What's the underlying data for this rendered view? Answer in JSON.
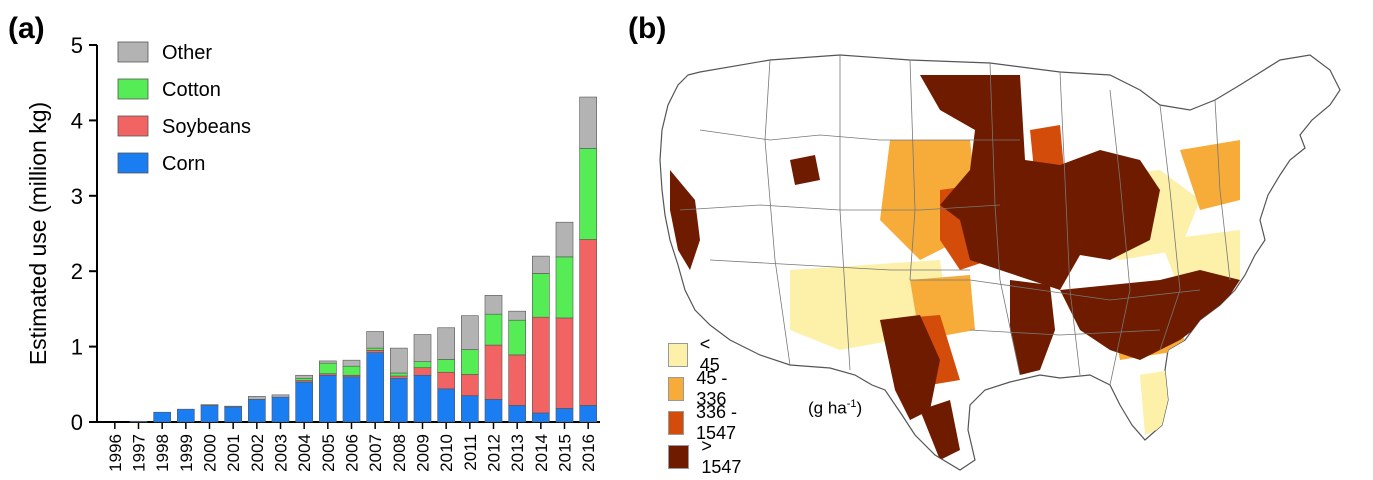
{
  "panels": {
    "a_label": "(a)",
    "b_label": "(b)"
  },
  "chart_data": {
    "type": "bar",
    "stacked": true,
    "title": "",
    "xlabel": "",
    "ylabel": "Estimated use (million kg)",
    "ylim": [
      0,
      5
    ],
    "yticks": [
      "0",
      "1",
      "2",
      "3",
      "4",
      "5"
    ],
    "categories": [
      "1996",
      "1997",
      "1998",
      "1999",
      "2000",
      "2001",
      "2002",
      "2003",
      "2004",
      "2005",
      "2006",
      "2007",
      "2008",
      "2009",
      "2010",
      "2011",
      "2012",
      "2013",
      "2014",
      "2015",
      "2016"
    ],
    "legend_position": "top-left",
    "series": [
      {
        "name": "Corn",
        "color": "#1a7ef2",
        "values": [
          0,
          0.01,
          0.13,
          0.17,
          0.22,
          0.2,
          0.3,
          0.33,
          0.53,
          0.62,
          0.6,
          0.92,
          0.58,
          0.62,
          0.44,
          0.35,
          0.3,
          0.22,
          0.12,
          0.18,
          0.22
        ]
      },
      {
        "name": "Soybeans",
        "color": "#f26464",
        "values": [
          0,
          0,
          0,
          0,
          0,
          0,
          0,
          0,
          0.02,
          0.02,
          0.02,
          0.03,
          0.03,
          0.1,
          0.22,
          0.28,
          0.72,
          0.67,
          1.27,
          1.2,
          2.2
        ]
      },
      {
        "name": "Cotton",
        "color": "#55ec55",
        "values": [
          0,
          0,
          0,
          0,
          0,
          0,
          0,
          0,
          0.03,
          0.14,
          0.12,
          0.03,
          0.04,
          0.08,
          0.17,
          0.33,
          0.41,
          0.46,
          0.58,
          0.81,
          1.21
        ]
      },
      {
        "name": "Other",
        "color": "#b3b3b3",
        "values": [
          0,
          0,
          0,
          0,
          0.01,
          0.01,
          0.04,
          0.03,
          0.04,
          0.03,
          0.08,
          0.22,
          0.33,
          0.36,
          0.42,
          0.45,
          0.25,
          0.12,
          0.23,
          0.46,
          0.68
        ]
      }
    ]
  },
  "map": {
    "legend": [
      {
        "label": "< 45",
        "color": "#fdf0a8"
      },
      {
        "label": "45 - 336",
        "color": "#f7ac3a"
      },
      {
        "label": "336 - 1547",
        "color": "#d44c0a"
      },
      {
        "label": "> 1547",
        "color": "#6e1b00"
      }
    ],
    "unit_main": "(g ha",
    "unit_sup": "-1",
    "unit_close": ")"
  }
}
